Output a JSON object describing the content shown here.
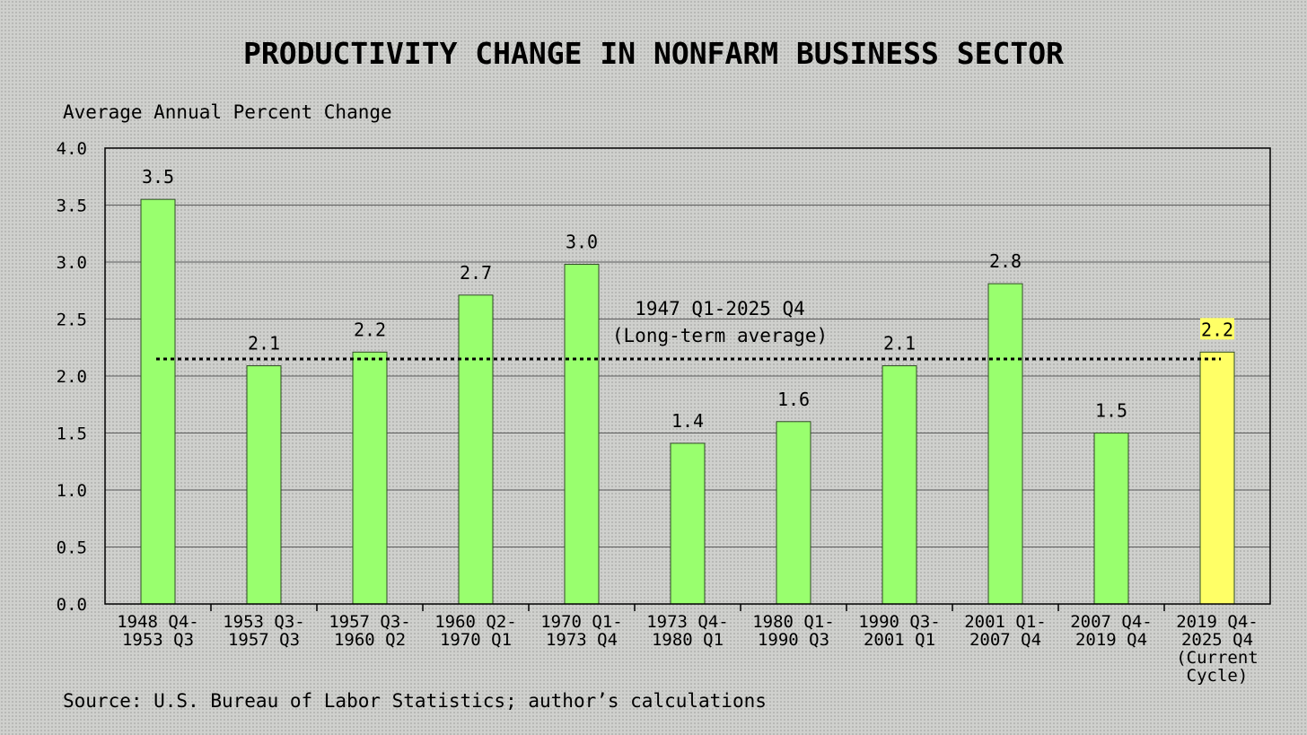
{
  "chart_data": {
    "type": "bar",
    "title": "PRODUCTIVITY CHANGE IN NONFARM BUSINESS SECTOR",
    "ylabel": "Average Annual Percent Change",
    "xlabel": "",
    "ylim": [
      0,
      4.0
    ],
    "yticks": [
      "0.0",
      "0.5",
      "1.0",
      "1.5",
      "2.0",
      "2.5",
      "3.0",
      "3.5",
      "4.0"
    ],
    "grid": true,
    "categories": [
      [
        "1948 Q4-",
        "1953 Q3"
      ],
      [
        "1953 Q3-",
        "1957 Q3"
      ],
      [
        "1957 Q3-",
        "1960 Q2"
      ],
      [
        "1960 Q2-",
        "1970 Q1"
      ],
      [
        "1970 Q1-",
        "1973 Q4"
      ],
      [
        "1973 Q4-",
        "1980 Q1"
      ],
      [
        "1980 Q1-",
        "1990 Q3"
      ],
      [
        "1990 Q3-",
        "2001 Q1"
      ],
      [
        "2001 Q1-",
        "2007 Q4"
      ],
      [
        "2007 Q4-",
        "2019 Q4"
      ],
      [
        "2019 Q4-",
        "2025 Q4",
        "(Current",
        "Cycle)"
      ]
    ],
    "values": [
      3.55,
      2.09,
      2.21,
      2.71,
      2.98,
      1.41,
      1.6,
      2.09,
      2.81,
      1.5,
      2.21
    ],
    "value_labels": [
      "3.5",
      "2.1",
      "2.2",
      "2.7",
      "3.0",
      "1.4",
      "1.6",
      "2.1",
      "2.8",
      "1.5",
      "2.2"
    ],
    "highlight_index": 10,
    "bar_color": "#99ff6e",
    "highlight_color": "#ffff66",
    "reference_line": {
      "value": 2.15,
      "label_lines": [
        "1947 Q1-2025 Q4",
        "(Long-term average)"
      ]
    }
  },
  "source": "Source: U.S. Bureau of Labor Statistics; author’s calculations"
}
